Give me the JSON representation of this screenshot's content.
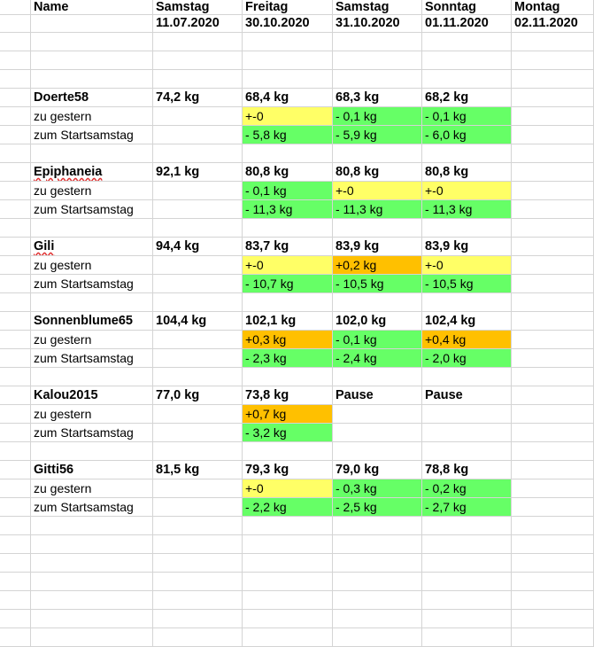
{
  "header": {
    "col_name": "Name",
    "days": [
      "Samstag",
      "Freitag",
      "Samstag",
      "Sonntag",
      "Montag"
    ],
    "dates": [
      "11.07.2020",
      "30.10.2020",
      "31.10.2020",
      "01.11.2020",
      "02.11.2020"
    ]
  },
  "colors": {
    "yellow": "#ffff66",
    "green": "#66ff66",
    "orange": "#ffc000"
  },
  "people": [
    {
      "name": "Doerte58",
      "name_underlined": false,
      "start": "74,2 kg",
      "weights": [
        "68,4 kg",
        "68,3 kg",
        "68,2 kg"
      ],
      "row2_label": "zu gestern",
      "row2": [
        {
          "t": "+-0",
          "c": "yellow"
        },
        {
          "t": "- 0,1 kg",
          "c": "green"
        },
        {
          "t": "- 0,1 kg",
          "c": "green"
        }
      ],
      "row3_label": "zum Startsamstag",
      "row3": [
        {
          "t": "- 5,8 kg",
          "c": "green"
        },
        {
          "t": "- 5,9 kg",
          "c": "green"
        },
        {
          "t": "- 6,0 kg",
          "c": "green"
        }
      ]
    },
    {
      "name": "Epiphaneia",
      "name_underlined": true,
      "start": "92,1 kg",
      "weights": [
        "80,8 kg",
        "80,8 kg",
        "80,8 kg"
      ],
      "row2_label": "zu gestern",
      "row2": [
        {
          "t": "-  0,1 kg",
          "c": "green"
        },
        {
          "t": "+-0",
          "c": "yellow"
        },
        {
          "t": "+-0",
          "c": "yellow"
        }
      ],
      "row3_label": "zum Startsamstag",
      "row3": [
        {
          "t": "- 11,3 kg",
          "c": "green"
        },
        {
          "t": "- 11,3 kg",
          "c": "green"
        },
        {
          "t": "- 11,3 kg",
          "c": "green"
        }
      ]
    },
    {
      "name": "Gili",
      "name_underlined": true,
      "start": "94,4 kg",
      "weights": [
        "83,7 kg",
        "83,9 kg",
        "83,9 kg"
      ],
      "row2_label": "zu gestern",
      "row2": [
        {
          "t": "+-0",
          "c": "yellow"
        },
        {
          "t": "+0,2 kg",
          "c": "orange"
        },
        {
          "t": "+-0",
          "c": "yellow"
        }
      ],
      "row3_label": "zum Startsamstag",
      "row3": [
        {
          "t": "- 10,7 kg",
          "c": "green"
        },
        {
          "t": "- 10,5 kg",
          "c": "green"
        },
        {
          "t": "- 10,5 kg",
          "c": "green"
        }
      ]
    },
    {
      "name": "Sonnenblume65",
      "name_underlined": false,
      "start": "104,4 kg",
      "weights": [
        "102,1 kg",
        "102,0 kg",
        "102,4 kg"
      ],
      "row2_label": "zu gestern",
      "row2": [
        {
          "t": "+0,3 kg",
          "c": "orange"
        },
        {
          "t": "- 0,1 kg",
          "c": "green"
        },
        {
          "t": "+0,4 kg",
          "c": "orange"
        }
      ],
      "row3_label": "zum Startsamstag",
      "row3": [
        {
          "t": "- 2,3 kg",
          "c": "green"
        },
        {
          "t": "- 2,4 kg",
          "c": "green"
        },
        {
          "t": "- 2,0 kg",
          "c": "green"
        }
      ]
    },
    {
      "name": "Kalou2015",
      "name_underlined": false,
      "start": "77,0 kg",
      "weights": [
        "73,8 kg",
        "Pause",
        "Pause"
      ],
      "row2_label": "zu gestern",
      "row2": [
        {
          "t": "+0,7 kg",
          "c": "orange"
        },
        {
          "t": "",
          "c": ""
        },
        {
          "t": "",
          "c": ""
        }
      ],
      "row3_label": "zum Startsamstag",
      "row3": [
        {
          "t": "- 3,2 kg",
          "c": "green"
        },
        {
          "t": "",
          "c": ""
        },
        {
          "t": "",
          "c": ""
        }
      ]
    },
    {
      "name": "Gitti56",
      "name_underlined": false,
      "start": "81,5 kg",
      "weights": [
        "79,3 kg",
        "79,0 kg",
        "78,8 kg"
      ],
      "row2_label": "zu gestern",
      "row2": [
        {
          "t": "+-0",
          "c": "yellow"
        },
        {
          "t": "- 0,3 kg",
          "c": "green"
        },
        {
          "t": "- 0,2 kg",
          "c": "green"
        }
      ],
      "row3_label": "zum Startsamstag",
      "row3": [
        {
          "t": "- 2,2 kg",
          "c": "green"
        },
        {
          "t": "- 2,5 kg",
          "c": "green"
        },
        {
          "t": "- 2,7 kg",
          "c": "green"
        }
      ]
    }
  ]
}
